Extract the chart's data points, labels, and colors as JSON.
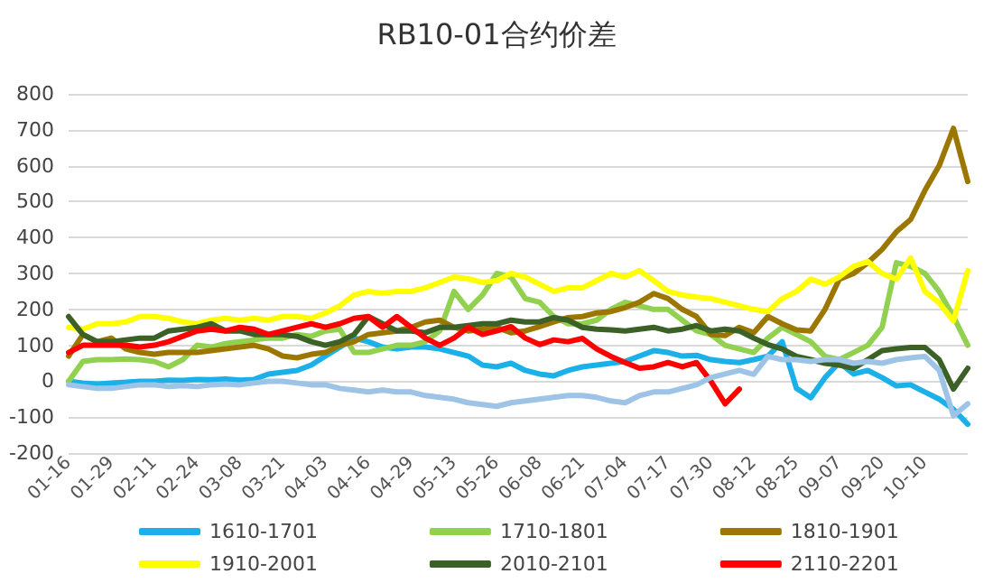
{
  "chart_data": {
    "type": "line",
    "title": "RB10-01合约价差",
    "categories": [
      "01-16",
      null,
      null,
      "01-29",
      null,
      null,
      "02-11",
      null,
      null,
      "02-24",
      null,
      null,
      "03-08",
      null,
      null,
      "03-21",
      null,
      null,
      "04-03",
      null,
      null,
      "04-16",
      null,
      null,
      "04-29",
      null,
      null,
      "05-13",
      null,
      null,
      "05-26",
      null,
      null,
      "06-08",
      null,
      null,
      "06-21",
      null,
      null,
      "07-04",
      null,
      null,
      "07-17",
      null,
      null,
      "07-30",
      null,
      null,
      "08-12",
      null,
      null,
      "08-25",
      null,
      null,
      "09-07",
      null,
      null,
      "09-20",
      null,
      null,
      "10-10",
      null,
      null,
      null
    ],
    "series": [
      {
        "name": "1610-1701",
        "color": "#1cb0e8",
        "values": [
          0,
          -5,
          -8,
          -5,
          -3,
          0,
          0,
          3,
          2,
          5,
          4,
          6,
          3,
          5,
          20,
          25,
          30,
          45,
          70,
          95,
          120,
          110,
          95,
          90,
          95,
          95,
          90,
          80,
          70,
          45,
          40,
          50,
          30,
          20,
          15,
          30,
          40,
          45,
          50,
          55,
          70,
          85,
          80,
          70,
          72,
          60,
          55,
          52,
          60,
          70,
          110,
          -20,
          -46,
          10,
          52,
          20,
          30,
          10,
          -13,
          -10,
          -30,
          -50,
          -78,
          -120
        ]
      },
      {
        "name": "1710-1801",
        "color": "#92d050",
        "values": [
          0,
          55,
          60,
          60,
          62,
          60,
          55,
          40,
          60,
          100,
          95,
          105,
          110,
          115,
          120,
          120,
          130,
          125,
          140,
          145,
          80,
          80,
          90,
          100,
          100,
          110,
          140,
          250,
          200,
          240,
          300,
          290,
          230,
          220,
          180,
          160,
          160,
          170,
          200,
          220,
          210,
          200,
          200,
          170,
          140,
          130,
          100,
          90,
          80,
          120,
          150,
          130,
          110,
          69,
          60,
          80,
          100,
          150,
          330,
          320,
          300,
          250,
          180,
          100
        ]
      },
      {
        "name": "1810-1901",
        "color": "#9c7700",
        "values": [
          70,
          130,
          110,
          120,
          90,
          80,
          75,
          80,
          80,
          80,
          85,
          90,
          95,
          100,
          90,
          70,
          65,
          75,
          80,
          100,
          110,
          130,
          135,
          140,
          150,
          165,
          170,
          150,
          140,
          145,
          150,
          135,
          140,
          152,
          165,
          177,
          180,
          190,
          194,
          205,
          220,
          244,
          230,
          200,
          180,
          130,
          127,
          150,
          135,
          180,
          160,
          143,
          140,
          200,
          284,
          300,
          330,
          367,
          416,
          450,
          531,
          600,
          704,
          556
        ]
      },
      {
        "name": "1910-2001",
        "color": "#ffff00",
        "values": [
          150,
          145,
          160,
          160,
          165,
          180,
          180,
          175,
          165,
          160,
          170,
          175,
          170,
          175,
          170,
          180,
          180,
          175,
          190,
          210,
          240,
          250,
          245,
          250,
          250,
          260,
          275,
          290,
          285,
          275,
          280,
          300,
          290,
          270,
          250,
          260,
          260,
          280,
          300,
          290,
          308,
          280,
          250,
          240,
          234,
          230,
          220,
          210,
          200,
          194,
          230,
          250,
          284,
          270,
          290,
          320,
          333,
          300,
          284,
          343,
          250,
          218,
          168,
          308
        ]
      },
      {
        "name": "2010-2101",
        "color": "#3b6126",
        "values": [
          180,
          130,
          110,
          110,
          115,
          120,
          120,
          140,
          145,
          150,
          160,
          140,
          140,
          130,
          130,
          130,
          125,
          110,
          100,
          110,
          130,
          180,
          160,
          140,
          140,
          135,
          150,
          150,
          155,
          160,
          160,
          170,
          165,
          165,
          177,
          170,
          150,
          145,
          143,
          140,
          145,
          150,
          140,
          145,
          155,
          140,
          145,
          140,
          120,
          102,
          90,
          69,
          60,
          50,
          45,
          36,
          60,
          85,
          90,
          94,
          94,
          60,
          -22,
          36
        ]
      },
      {
        "name": "2110-2201",
        "color": "#ff0000",
        "values": [
          80,
          100,
          100,
          100,
          100,
          95,
          100,
          110,
          125,
          140,
          145,
          140,
          150,
          145,
          130,
          140,
          150,
          160,
          150,
          160,
          175,
          180,
          150,
          180,
          150,
          120,
          100,
          120,
          150,
          130,
          140,
          152,
          120,
          102,
          115,
          110,
          119,
          90,
          69,
          52,
          36,
          40,
          52,
          40,
          52,
          0,
          -63,
          -22,
          null,
          null,
          null,
          null,
          null,
          null,
          null,
          null,
          null,
          null,
          null,
          null,
          null,
          null,
          null,
          null
        ]
      },
      {
        "color": "#9dc3e6",
        "values": [
          -10,
          -15,
          -20,
          -20,
          -15,
          -10,
          -10,
          -15,
          -12,
          -15,
          -10,
          -8,
          -10,
          -5,
          0,
          0,
          -5,
          -10,
          -10,
          -20,
          -25,
          -30,
          -25,
          -30,
          -30,
          -40,
          -45,
          -50,
          -60,
          -65,
          -70,
          -60,
          -55,
          -50,
          -45,
          -40,
          -40,
          -45,
          -55,
          -60,
          -40,
          -30,
          -30,
          -20,
          -10,
          10,
          20,
          30,
          19,
          69,
          60,
          60,
          55,
          60,
          60,
          50,
          55,
          50,
          60,
          65,
          69,
          30,
          -96,
          -63
        ]
      }
    ],
    "ylim": [
      -200,
      800
    ],
    "yticks": [
      -200,
      -100,
      0,
      100,
      200,
      300,
      400,
      500,
      600,
      700,
      800
    ],
    "grid": "y",
    "legend": "bottom",
    "marker": "none",
    "line_style": "solid"
  }
}
